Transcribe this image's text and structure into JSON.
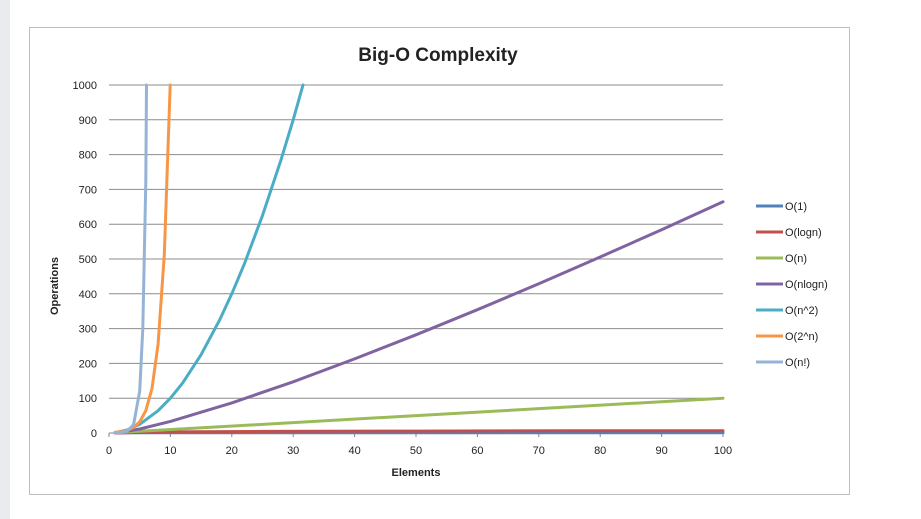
{
  "chart_data": {
    "type": "line",
    "title": "Big-O Complexity",
    "xlabel": "Elements",
    "ylabel": "Operations",
    "xlim": [
      0,
      100
    ],
    "ylim": [
      0,
      1000
    ],
    "x_ticks": [
      "0",
      "10",
      "20",
      "30",
      "40",
      "50",
      "60",
      "70",
      "80",
      "90",
      "100"
    ],
    "y_ticks": [
      "0",
      "100",
      "200",
      "300",
      "400",
      "500",
      "600",
      "700",
      "800",
      "900",
      "1000"
    ],
    "grid": "horizontal",
    "legend_position": "right",
    "series": [
      {
        "name": "O(1)",
        "color": "#4f81bd",
        "x": [
          1,
          100
        ],
        "y": [
          1,
          1
        ]
      },
      {
        "name": "O(logn)",
        "color": "#c0504d",
        "x": [
          1,
          10,
          25,
          50,
          75,
          100
        ],
        "y": [
          0,
          3.3,
          4.6,
          5.6,
          6.2,
          6.6
        ]
      },
      {
        "name": "O(n)",
        "color": "#9bbb59",
        "x": [
          1,
          100
        ],
        "y": [
          1,
          100
        ]
      },
      {
        "name": "O(nlogn)",
        "color": "#8064a2",
        "x": [
          1,
          5,
          10,
          20,
          30,
          40,
          50,
          60,
          70,
          80,
          90,
          100
        ],
        "y": [
          0,
          11.6,
          33.2,
          86.4,
          147.2,
          212.9,
          282.2,
          354.4,
          429.1,
          505.8,
          584.3,
          664.4
        ]
      },
      {
        "name": "O(n^2)",
        "color": "#4bacc6",
        "x": [
          1,
          3,
          5,
          8,
          10,
          12,
          15,
          18,
          20,
          22,
          25,
          28,
          30,
          31.6
        ],
        "y": [
          1,
          9,
          25,
          64,
          100,
          144,
          225,
          324,
          400,
          484,
          625,
          784,
          900,
          1000
        ]
      },
      {
        "name": "O(2^n)",
        "color": "#f79646",
        "x": [
          1,
          2,
          3,
          4,
          5,
          6,
          7,
          8,
          9,
          9.97
        ],
        "y": [
          2,
          4,
          8,
          16,
          32,
          64,
          128,
          256,
          512,
          1000
        ]
      },
      {
        "name": "O(n!)",
        "color": "#95b3d7",
        "x": [
          1,
          2,
          3,
          4,
          5,
          5.5,
          6,
          6.1
        ],
        "y": [
          1,
          2,
          6,
          24,
          120,
          300,
          720,
          1000
        ]
      }
    ]
  }
}
